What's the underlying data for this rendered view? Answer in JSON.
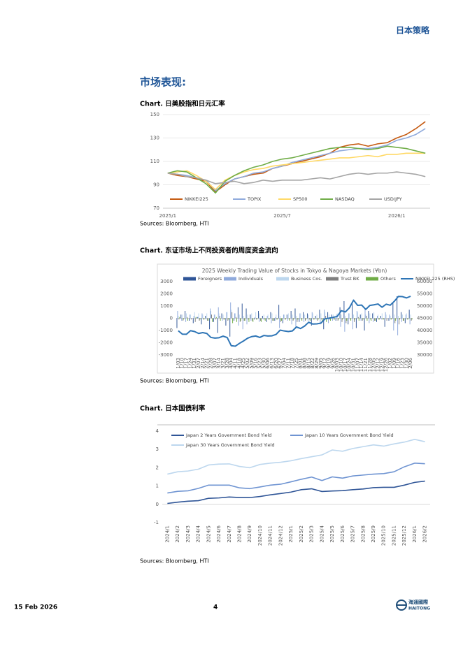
{
  "header": "日本策略",
  "section_title": "市场表现:",
  "footer": {
    "date": "15 Feb 2026",
    "page": 4,
    "logo_cn": "海通國際",
    "logo_en": "HAITONG"
  },
  "chart_data": [
    {
      "type": "line",
      "caption": "Chart. 日美股指和日元汇率",
      "source": "Sources: Bloomberg, HTI",
      "categories": [
        "2025/1",
        null,
        null,
        null,
        null,
        null,
        null,
        null,
        null,
        null,
        null,
        null,
        "2025/7",
        null,
        null,
        null,
        null,
        null,
        null,
        null,
        null,
        null,
        null,
        null,
        "2026/1",
        null,
        null,
        null
      ],
      "ylim": [
        70,
        150
      ],
      "yticks": [
        70,
        90,
        110,
        130,
        150
      ],
      "grid": true,
      "legend": "bottom",
      "series": [
        {
          "name": "NIKKEI225",
          "color": "#c55a11",
          "values": [
            100,
            98,
            97,
            95,
            93,
            84,
            90,
            95,
            97,
            99,
            100,
            104,
            106,
            108,
            110,
            112,
            114,
            117,
            122,
            124,
            125,
            123,
            125,
            126,
            130,
            133,
            138,
            144
          ]
        },
        {
          "name": "TOPIX",
          "color": "#8faadc",
          "values": [
            100,
            99,
            98,
            96,
            94,
            85,
            91,
            95,
            97,
            100,
            101,
            104,
            106,
            109,
            111,
            113,
            115,
            117,
            119,
            120,
            121,
            121,
            122,
            124,
            128,
            130,
            133,
            138
          ]
        },
        {
          "name": "SP500",
          "color": "#ffd966",
          "values": [
            100,
            101,
            102,
            98,
            93,
            86,
            94,
            98,
            101,
            103,
            104,
            106,
            107,
            108,
            109,
            110,
            111,
            112,
            113,
            113,
            114,
            115,
            114,
            116,
            116,
            117,
            117,
            117
          ]
        },
        {
          "name": "NASDAQ",
          "color": "#70ad47",
          "values": [
            100,
            102,
            101,
            96,
            91,
            83,
            93,
            98,
            102,
            105,
            107,
            110,
            112,
            113,
            115,
            117,
            119,
            121,
            122,
            122,
            121,
            120,
            121,
            123,
            122,
            121,
            119,
            117
          ]
        },
        {
          "name": "USD/JPY",
          "color": "#a5a5a5",
          "values": [
            100,
            99,
            97,
            96,
            94,
            91,
            92,
            93,
            91,
            92,
            94,
            93,
            94,
            94,
            94,
            95,
            96,
            95,
            97,
            99,
            100,
            99,
            100,
            100,
            101,
            100,
            99,
            97
          ]
        }
      ]
    },
    {
      "type": "bar",
      "caption": "Chart. 东证市场上不同投资者的周度资金流向",
      "source": "Sources: Bloomberg, HTI",
      "title": "2025 Weekly Trading Value of Stocks in Tokyo & Nagoya Markets (¥bn)",
      "categories": [
        "1/03",
        "1/10",
        "1/17",
        "1/24",
        "1/31",
        "2/07",
        "2/14",
        "2/21",
        "2/28",
        "3/07",
        "3/14",
        "3/21",
        "3/28",
        "4/04",
        "4/11",
        "4/18",
        "4/25",
        "5/02",
        "5/09",
        "5/16",
        "5/23",
        "5/30",
        "6/06",
        "6/13",
        "6/20",
        "6/27",
        "7/04",
        "7/11",
        "7/18",
        "7/25",
        "8/01",
        "8/08",
        "8/15",
        "8/22",
        "8/29",
        "9/05",
        "9/12",
        "9/19",
        "9/26",
        "10/03",
        "10/10",
        "10/17",
        "10/24",
        "10/31",
        "11/07",
        "11/14",
        "11/21",
        "11/28",
        "12/05",
        "12/12",
        "12/19",
        "12/26",
        "1/02",
        "1/09",
        "1/16",
        "1/23",
        "1/30",
        "2/06"
      ],
      "ylim": [
        -3000,
        3000
      ],
      "yticks": [
        -3000,
        -2000,
        -1000,
        0,
        1000,
        2000,
        3000
      ],
      "y2lim": [
        30000,
        60000
      ],
      "y2ticks": [
        30000,
        35000,
        40000,
        45000,
        50000,
        55000,
        60000
      ],
      "grid": false,
      "legend": "top",
      "series": [
        {
          "name": "Foreigners",
          "color": "#2f5597",
          "values": [
            -800,
            300,
            600,
            -200,
            -400,
            100,
            -500,
            200,
            -900,
            -300,
            -1200,
            400,
            -600,
            -1500,
            -200,
            900,
            1200,
            800,
            300,
            -100,
            600,
            200,
            -300,
            500,
            -200,
            1100,
            -400,
            300,
            600,
            800,
            -300,
            500,
            400,
            -600,
            200,
            700,
            -900,
            500,
            300,
            -200,
            900,
            1400,
            -500,
            1200,
            -800,
            300,
            -1000,
            600,
            400,
            -300,
            200,
            -700,
            -200,
            1300,
            1800,
            500,
            -400,
            700
          ]
        },
        {
          "name": "Individuals",
          "color": "#8faadc",
          "values": [
            600,
            -200,
            -300,
            300,
            200,
            100,
            400,
            -100,
            800,
            300,
            900,
            -200,
            500,
            1300,
            400,
            -600,
            -900,
            -500,
            -200,
            100,
            -300,
            -100,
            200,
            -400,
            100,
            -800,
            300,
            -200,
            -500,
            -700,
            400,
            -300,
            -200,
            500,
            -100,
            -500,
            700,
            -400,
            -200,
            300,
            -700,
            -1100,
            400,
            -900,
            600,
            -200,
            800,
            -400,
            -300,
            200,
            -100,
            500,
            300,
            -1000,
            -1400,
            -300,
            300,
            -500
          ]
        },
        {
          "name": "Business Cos.",
          "color": "#bdd7ee",
          "values": [
            200,
            300,
            400,
            300,
            500,
            400,
            300,
            400,
            600,
            300,
            400,
            300,
            500,
            700,
            400,
            300,
            200,
            300,
            400,
            500,
            400,
            300,
            300,
            400,
            300,
            200,
            300,
            400,
            300,
            200,
            400,
            300,
            300,
            400,
            300,
            400,
            500,
            300,
            300,
            400,
            300,
            200,
            400,
            300,
            500,
            400,
            300,
            400,
            500,
            300,
            400,
            300,
            200,
            300,
            200,
            300,
            400,
            300
          ]
        },
        {
          "name": "Trust BK",
          "color": "#7f7f7f",
          "values": [
            -100,
            -200,
            100,
            -100,
            -300,
            -200,
            -100,
            -200,
            300,
            -100,
            200,
            -100,
            -200,
            500,
            100,
            -300,
            -200,
            -100,
            -200,
            -100,
            -200,
            -100,
            -100,
            -200,
            -100,
            -300,
            -100,
            -100,
            -200,
            -300,
            -100,
            -200,
            -100,
            -100,
            -200,
            -100,
            200,
            -100,
            -100,
            -200,
            -300,
            -400,
            -100,
            -300,
            100,
            -200,
            200,
            -100,
            -200,
            -100,
            -100,
            -200,
            -100,
            -400,
            -500,
            -200,
            -100,
            -200
          ]
        },
        {
          "name": "Others",
          "color": "#70ad47",
          "values": [
            100,
            -100,
            -200,
            0,
            100,
            -100,
            -100,
            -200,
            -300,
            100,
            -200,
            -100,
            -100,
            -400,
            -300,
            -200,
            -200,
            -300,
            -300,
            -100,
            -300,
            -200,
            -100,
            -200,
            -100,
            -200,
            -100,
            -200,
            -100,
            -100,
            -200,
            -100,
            -200,
            -100,
            -100,
            -300,
            -300,
            -200,
            -100,
            -100,
            -100,
            -200,
            -200,
            -100,
            -200,
            -100,
            -200,
            -200,
            -200,
            -100,
            -100,
            0,
            -100,
            -200,
            -100,
            -200,
            -100,
            -100
          ]
        },
        {
          "name": "NIKKEI 225 (RHS)",
          "color": "#2e75b6",
          "type": "line",
          "axis": "y2",
          "values": [
            39900,
            38500,
            38450,
            39930,
            39570,
            38790,
            39150,
            38780,
            37160,
            36890,
            37050,
            37680,
            37120,
            33780,
            33590,
            34730,
            35710,
            36830,
            37500,
            37750,
            37160,
            37970,
            37740,
            37830,
            38400,
            40150,
            39810,
            39570,
            39820,
            41460,
            40800,
            41820,
            43380,
            42630,
            42720,
            43020,
            44770,
            45050,
            45350,
            45770,
            48090,
            47580,
            49300,
            52410,
            50280,
            50380,
            48630,
            50250,
            50490,
            50840,
            49510,
            50750,
            50340,
            51940,
            53940,
            53840,
            53320,
            54000
          ]
        }
      ]
    },
    {
      "type": "line",
      "caption": "Chart. 日本国债利率",
      "source": "Sources: Bloomberg, HTI",
      "categories": [
        "2024/1",
        "2024/2",
        "2024/3",
        "2024/4",
        "2024/5",
        "2024/6",
        "2024/7",
        "2024/8",
        "2024/9",
        "2024/10",
        "2024/11",
        "2024/12",
        "2025/1",
        "2025/2",
        "2025/3",
        "2025/4",
        "2025/5",
        "2025/6",
        "2025/7",
        "2025/8",
        "2025/9",
        "2025/10",
        "2025/11",
        "2025/12",
        "2026/1",
        "2026/2"
      ],
      "ylim": [
        -1,
        4
      ],
      "yticks": [
        -1,
        0,
        1,
        2,
        3,
        4
      ],
      "grid": false,
      "legend": "top",
      "series": [
        {
          "name": "Japan 2 Years Government Bond Yield",
          "color": "#2f5597",
          "values": [
            0.05,
            0.12,
            0.17,
            0.2,
            0.33,
            0.35,
            0.4,
            0.37,
            0.37,
            0.43,
            0.52,
            0.59,
            0.67,
            0.8,
            0.85,
            0.7,
            0.73,
            0.75,
            0.8,
            0.84,
            0.91,
            0.93,
            0.93,
            1.05,
            1.2,
            1.27
          ]
        },
        {
          "name": "Japan 10 Years Government Bond Yield",
          "color": "#6f94d2",
          "values": [
            0.62,
            0.71,
            0.74,
            0.87,
            1.05,
            1.05,
            1.05,
            0.9,
            0.86,
            0.95,
            1.05,
            1.1,
            1.23,
            1.37,
            1.49,
            1.3,
            1.5,
            1.43,
            1.55,
            1.6,
            1.65,
            1.68,
            1.78,
            2.05,
            2.25,
            2.22
          ]
        },
        {
          "name": "Japan 30 Years Government Bond Yield",
          "color": "#bdd7ee",
          "values": [
            1.65,
            1.78,
            1.82,
            1.92,
            2.15,
            2.2,
            2.21,
            2.07,
            2.0,
            2.18,
            2.25,
            2.3,
            2.38,
            2.5,
            2.6,
            2.7,
            2.97,
            2.9,
            3.05,
            3.15,
            3.25,
            3.18,
            3.3,
            3.4,
            3.55,
            3.42
          ]
        }
      ]
    }
  ]
}
